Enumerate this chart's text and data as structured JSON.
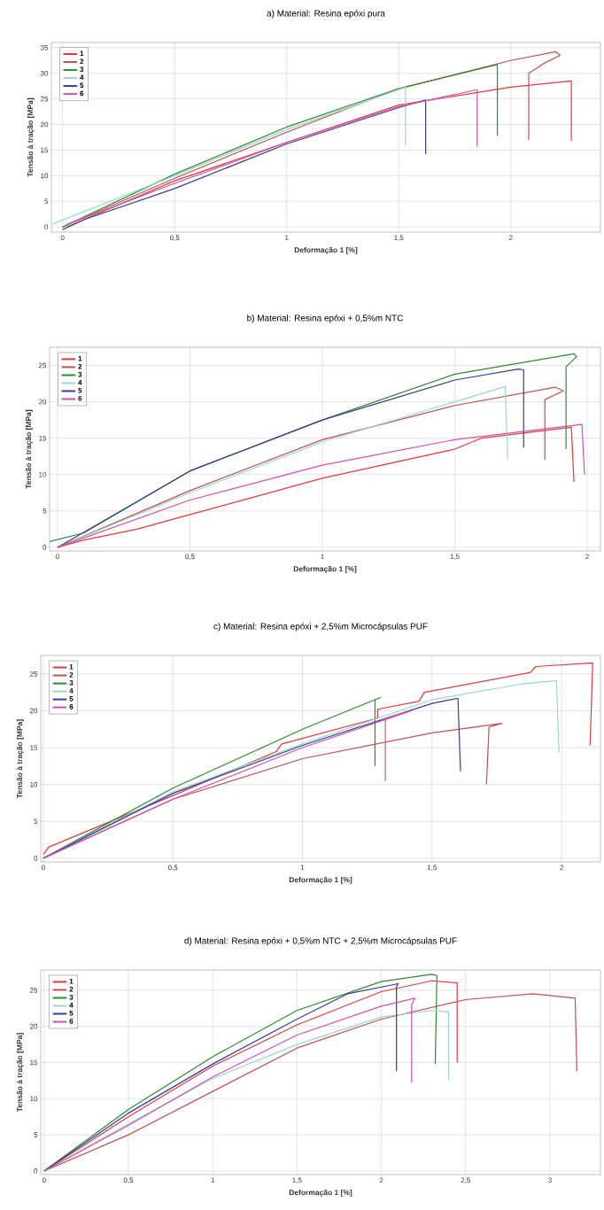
{
  "chart_data": [
    {
      "type": "line",
      "title": "a) Material: Resina epóxi pura",
      "xlabel": "Deformação 1 [%]",
      "ylabel": "Tensão à tração [MPa]",
      "xlim": [
        -0.05,
        2.4
      ],
      "ylim": [
        -1,
        36
      ],
      "xticks": [
        0,
        {
          "value": 0.5,
          "label": "0,5"
        },
        1,
        {
          "value": 1.5,
          "label": "1,5"
        },
        2
      ],
      "yticks": [
        0,
        5,
        10,
        15,
        20,
        25,
        30,
        35
      ],
      "grid": true,
      "legend": "top left",
      "line_style": "solid",
      "series": [
        {
          "name": "1",
          "color": "#e03a3a",
          "x": [
            0.02,
            0.5,
            1,
            1.5,
            2,
            2.27,
            2.27
          ],
          "values": [
            0,
            9,
            16.5,
            23.8,
            27.3,
            28.5,
            16.8
          ]
        },
        {
          "name": "2",
          "color": "#c0504d",
          "x": [
            0,
            0.5,
            1,
            1.5,
            2,
            2.2,
            2.22,
            2.15,
            2.08,
            2.08
          ],
          "values": [
            0,
            9.5,
            18.5,
            27,
            32.5,
            34.2,
            33.5,
            32,
            30,
            17
          ]
        },
        {
          "name": "3",
          "color": "#2e8b2e",
          "x": [
            0,
            0.5,
            1,
            1.5,
            1.94,
            1.94
          ],
          "values": [
            0,
            10.3,
            19.5,
            27,
            31.7,
            17.8
          ]
        },
        {
          "name": "4",
          "color": "#99d8cc",
          "x": [
            -0.05,
            0.5,
            1,
            1.53,
            1.53
          ],
          "values": [
            0.5,
            10,
            19,
            27.3,
            15.8
          ]
        },
        {
          "name": "5",
          "color": "#3a3a9a",
          "x": [
            0,
            0.1,
            0.5,
            1,
            1.5,
            1.62,
            1.62
          ],
          "values": [
            -0.5,
            1.5,
            7.5,
            16.2,
            23.3,
            24.8,
            14.2
          ]
        },
        {
          "name": "6",
          "color": "#d050b0",
          "x": [
            0.02,
            0.5,
            1,
            1.5,
            1.85,
            1.85
          ],
          "values": [
            0.5,
            8.5,
            16.5,
            23.5,
            26.8,
            15.7
          ]
        }
      ]
    },
    {
      "type": "line",
      "title": "b) Material: Resina epóxi + 0,5%m NTC",
      "xlabel": "Deformação 1 [%]",
      "ylabel": "Tensão à tração [MPa]",
      "xlim": [
        -0.03,
        2.05
      ],
      "ylim": [
        -0.5,
        27.5
      ],
      "xticks": [
        0,
        {
          "value": 0.5,
          "label": "0,5"
        },
        1,
        {
          "value": 1.5,
          "label": "1,5"
        },
        2
      ],
      "yticks": [
        0,
        5,
        10,
        15,
        20,
        25
      ],
      "grid": true,
      "legend": "top left",
      "line_style": "solid",
      "series": [
        {
          "name": "1",
          "color": "#e03a3a",
          "x": [
            0,
            0.1,
            0.3,
            0.5,
            1,
            1.5,
            1.6,
            1.94,
            1.95
          ],
          "values": [
            0,
            1,
            2.5,
            4.5,
            9.5,
            13.5,
            15,
            16.5,
            9
          ]
        },
        {
          "name": "2",
          "color": "#c0504d",
          "x": [
            0,
            0.5,
            1,
            1.5,
            1.88,
            1.91,
            1.84,
            1.84
          ],
          "values": [
            0,
            7.8,
            14.8,
            19.5,
            22,
            21.5,
            20.3,
            12
          ]
        },
        {
          "name": "3",
          "color": "#2e8b2e",
          "x": [
            -0.03,
            0.1,
            0.5,
            1,
            1.5,
            1.95,
            1.96,
            1.92,
            1.92
          ],
          "values": [
            0.8,
            2,
            10.5,
            17.5,
            23.8,
            26.6,
            26.2,
            24.8,
            13.5
          ]
        },
        {
          "name": "4",
          "color": "#99d8cc",
          "x": [
            0,
            0.5,
            1,
            1.5,
            1.69,
            1.7
          ],
          "values": [
            0,
            7.5,
            14.5,
            20,
            22.1,
            12.2
          ]
        },
        {
          "name": "5",
          "color": "#3a3a9a",
          "x": [
            0,
            0.5,
            1,
            1.5,
            1.74,
            1.76,
            1.76
          ],
          "values": [
            0,
            10.5,
            17.5,
            23,
            24.5,
            24.4,
            13.7
          ]
        },
        {
          "name": "6",
          "color": "#d050b0",
          "x": [
            0,
            0.5,
            1,
            1.5,
            1.98,
            1.99
          ],
          "values": [
            0,
            6.5,
            11.3,
            14.8,
            16.9,
            10
          ]
        }
      ]
    },
    {
      "type": "line",
      "title": "c) Material: Resina epóxi + 2,5%m Microcápsulas PUF",
      "xlabel": "Deformação 1 [%]",
      "ylabel": "Tensão à tração [MPa]",
      "xlim": [
        -0.01,
        2.15
      ],
      "ylim": [
        -0.5,
        27.5
      ],
      "xticks": [
        0,
        {
          "value": 0.5,
          "label": "0,5"
        },
        1,
        {
          "value": 1.5,
          "label": "1,5"
        },
        2
      ],
      "yticks": [
        0,
        5,
        10,
        15,
        20,
        25
      ],
      "grid": true,
      "legend": "top left",
      "line_style": "solid",
      "series": [
        {
          "name": "1",
          "color": "#e03a3a",
          "x": [
            0,
            0.02,
            0.5,
            0.9,
            0.92,
            1.29,
            1.29,
            1.45,
            1.47,
            1.88,
            1.9,
            2.12,
            2.11
          ],
          "values": [
            0.5,
            1.5,
            8.5,
            14.5,
            15.5,
            19,
            20.2,
            21.3,
            22.5,
            25.2,
            26,
            26.5,
            15.3
          ]
        },
        {
          "name": "2",
          "color": "#c0504d",
          "x": [
            0,
            0.5,
            1,
            1.5,
            1.77,
            1.72,
            1.71
          ],
          "values": [
            0,
            8,
            13.5,
            17,
            18.3,
            17.8,
            10
          ]
        },
        {
          "name": "3",
          "color": "#2e8b2e",
          "x": [
            0,
            0.5,
            1,
            1.3,
            1.28,
            1.28
          ],
          "values": [
            0,
            9.5,
            17.5,
            21.8,
            21.5,
            12.5
          ]
        },
        {
          "name": "4",
          "color": "#99d8cc",
          "x": [
            0,
            0.5,
            1,
            1.5,
            1.84,
            1.98,
            1.99
          ],
          "values": [
            0,
            9,
            15.5,
            21.5,
            23.6,
            24.1,
            14.3
          ]
        },
        {
          "name": "5",
          "color": "#3a3a9a",
          "x": [
            0,
            0.5,
            1,
            1.5,
            1.6,
            1.61
          ],
          "values": [
            0,
            8.8,
            15.3,
            21,
            21.7,
            11.8
          ]
        },
        {
          "name": "6",
          "color": "#d050b0",
          "x": [
            0,
            0.5,
            1,
            1.42,
            1.32,
            1.32
          ],
          "values": [
            0,
            8,
            15,
            20,
            19,
            10.5
          ]
        }
      ]
    },
    {
      "type": "line",
      "title": "d) Material: Resina epóxi + 0,5%m NTC + 2,5%m Microcápsulas PUF",
      "xlabel": "Deformação 1 [%]",
      "ylabel": "Tensão à tração [MPa]",
      "xlim": [
        -0.02,
        3.3
      ],
      "ylim": [
        -0.5,
        27.8
      ],
      "xticks": [
        0,
        {
          "value": 0.5,
          "label": "0,5"
        },
        1,
        {
          "value": 1.5,
          "label": "1,5"
        },
        2,
        {
          "value": 2.5,
          "label": "2,5"
        },
        3
      ],
      "yticks": [
        0,
        5,
        10,
        15,
        20,
        25
      ],
      "grid": true,
      "legend": "top left",
      "line_style": "solid",
      "series": [
        {
          "name": "1",
          "color": "#e03a3a",
          "x": [
            0,
            0.5,
            1,
            1.5,
            2,
            2.3,
            2.45,
            2.45
          ],
          "values": [
            0,
            7.5,
            14.5,
            20.2,
            24.8,
            26.3,
            26,
            15
          ]
        },
        {
          "name": "2",
          "color": "#c0504d",
          "x": [
            0,
            0.5,
            1,
            1.5,
            2,
            2.5,
            2.9,
            3.15,
            3.16
          ],
          "values": [
            0,
            5,
            11,
            17,
            21,
            23.7,
            24.5,
            23.9,
            13.8
          ]
        },
        {
          "name": "3",
          "color": "#2e8b2e",
          "x": [
            0,
            0.5,
            1,
            1.5,
            2,
            2.3,
            2.33,
            2.32
          ],
          "values": [
            0,
            8.5,
            15.8,
            22.2,
            26.2,
            27.2,
            27,
            14.8
          ]
        },
        {
          "name": "4",
          "color": "#99d8cc",
          "x": [
            0,
            0.5,
            1,
            1.5,
            2,
            2.3,
            2.4,
            2.4
          ],
          "values": [
            0,
            6.5,
            12.8,
            17.5,
            21.3,
            22.2,
            22,
            12.5
          ]
        },
        {
          "name": "5",
          "color": "#3a3a9a",
          "x": [
            0,
            0.5,
            1,
            1.5,
            1.8,
            2.1,
            2.09,
            2.09
          ],
          "values": [
            0,
            8,
            14.8,
            21,
            24.5,
            25.9,
            25.5,
            13.8
          ]
        },
        {
          "name": "6",
          "color": "#d050b0",
          "x": [
            0,
            0.5,
            1,
            1.5,
            2,
            2.2,
            2.18,
            2.18
          ],
          "values": [
            0,
            6.3,
            13,
            18.8,
            22.8,
            23.9,
            23,
            12.2
          ]
        }
      ]
    }
  ]
}
